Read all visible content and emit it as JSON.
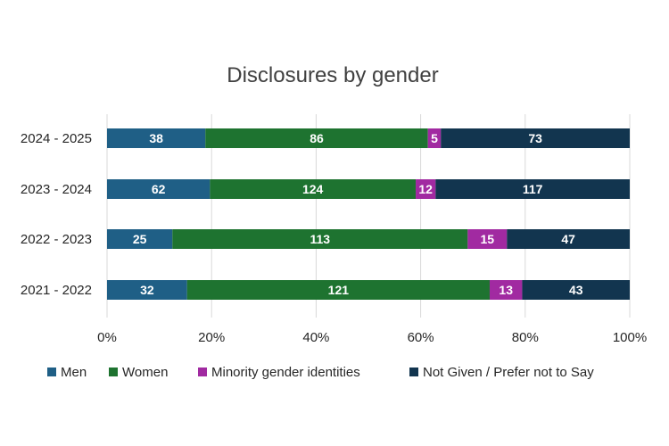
{
  "chart_data": {
    "type": "bar",
    "orientation": "horizontal",
    "stacked": "100%",
    "title": "Disclosures by gender",
    "xlabel": "",
    "ylabel": "",
    "categories": [
      "2024 - 2025",
      "2023 - 2024",
      "2022 - 2023",
      "2021 - 2022"
    ],
    "series": [
      {
        "name": "Men",
        "color": "#1f5f86",
        "values": [
          38,
          62,
          25,
          32
        ]
      },
      {
        "name": "Women",
        "color": "#1e7330",
        "values": [
          86,
          124,
          113,
          121
        ]
      },
      {
        "name": "Minority gender identities",
        "color": "#a12aa1",
        "values": [
          5,
          12,
          15,
          13
        ]
      },
      {
        "name": "Not Given / Prefer not to Say",
        "color": "#12354f",
        "values": [
          73,
          117,
          47,
          43
        ]
      }
    ],
    "xticks": [
      "0%",
      "20%",
      "40%",
      "60%",
      "80%",
      "100%"
    ],
    "xlim": [
      0,
      100
    ],
    "grid": true,
    "legend_position": "bottom"
  }
}
